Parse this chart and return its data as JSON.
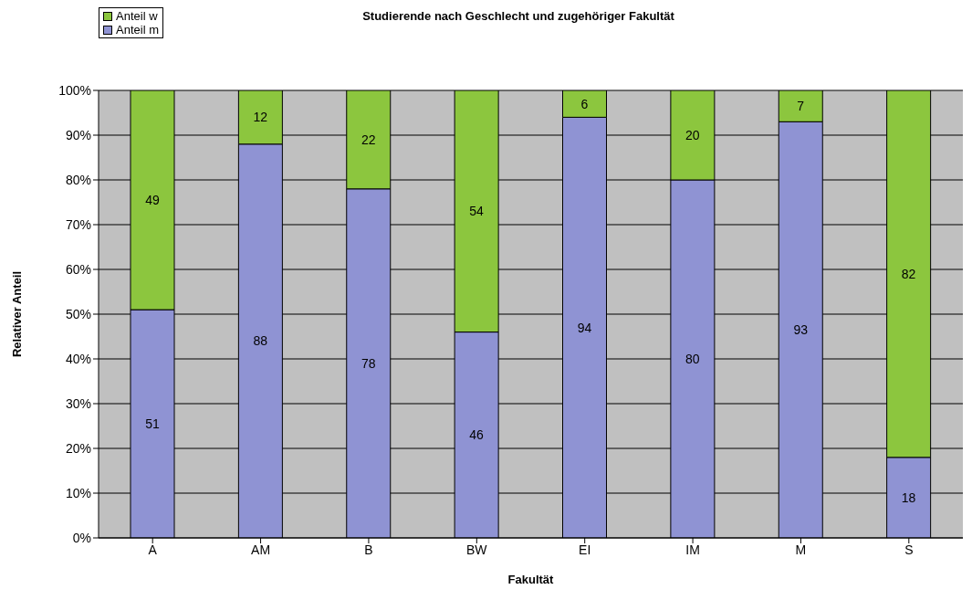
{
  "chart_data": {
    "type": "bar",
    "title": "Studierende nach Geschlecht und zugehöriger Fakultät",
    "xlabel": "Fakultät",
    "ylabel": "Relativer Anteil",
    "categories": [
      "A",
      "AM",
      "B",
      "BW",
      "EI",
      "IM",
      "M",
      "S"
    ],
    "series": [
      {
        "name": "Anteil m",
        "color": "#8f93d3",
        "values": [
          51,
          88,
          78,
          46,
          94,
          80,
          93,
          18
        ]
      },
      {
        "name": "Anteil w",
        "color": "#8cc63e",
        "values": [
          49,
          12,
          22,
          54,
          6,
          20,
          7,
          82
        ]
      }
    ],
    "stacked": true,
    "data_labels": true,
    "ylim": [
      0,
      100
    ],
    "yticks": [
      {
        "value": 0,
        "label": "0%"
      },
      {
        "value": 10,
        "label": "10%"
      },
      {
        "value": 20,
        "label": "20%"
      },
      {
        "value": 30,
        "label": "30%"
      },
      {
        "value": 40,
        "label": "40%"
      },
      {
        "value": 50,
        "label": "50%"
      },
      {
        "value": 60,
        "label": "60%"
      },
      {
        "value": 70,
        "label": "70%"
      },
      {
        "value": 80,
        "label": "80%"
      },
      {
        "value": 90,
        "label": "90%"
      },
      {
        "value": 100,
        "label": "100%"
      }
    ],
    "grid": "y",
    "legend": "top left"
  }
}
